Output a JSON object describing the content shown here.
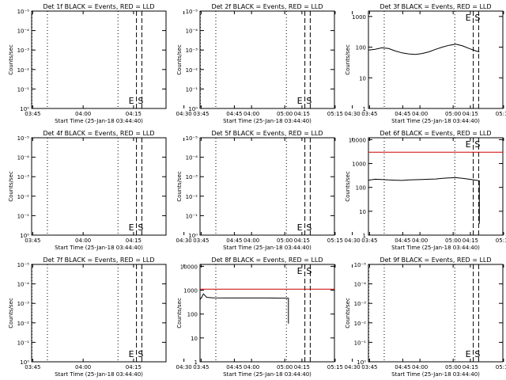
{
  "figure": {
    "x_ticks": [
      "03:45",
      "04:00",
      "04:15",
      "04:30",
      "04:45",
      "05:00",
      "05:15"
    ],
    "x_range_min": [
      0,
      40
    ],
    "xlabel": "Start Time (25-Jan-18 03:44:40)",
    "ylabel": "Counts/sec",
    "linear_yticks": [
      "10⁰",
      "10⁻¹",
      "10⁻²",
      "10⁻³",
      "10⁻⁴",
      "10⁻⁵"
    ],
    "log_yticks_3": [
      "1",
      "10",
      "100",
      "1000"
    ],
    "log_yticks_4": [
      "1",
      "10",
      "100",
      "1000",
      "10000"
    ],
    "colors": {
      "events": "#000000",
      "lld": "#cc0000"
    }
  },
  "chart_data": [
    {
      "type": "line",
      "title": "Det 1f BLACK = Events, RED = LLD",
      "scale": "linear-empty",
      "markers": {
        "E": 6.5,
        "S": 13.3
      },
      "dotted_x": [
        0.1,
        4.7,
        25.7
      ],
      "dashed_x": [
        31.2,
        32.8
      ],
      "series": []
    },
    {
      "type": "line",
      "title": "Det 2f BLACK = Events, RED = LLD",
      "scale": "linear-empty",
      "markers": {
        "E": 6.5,
        "S": 13.3
      },
      "dotted_x": [
        0.1,
        4.7,
        25.7
      ],
      "dashed_x": [
        31.2,
        32.8
      ],
      "series": []
    },
    {
      "type": "line",
      "title": "Det 3f BLACK = Events, RED = LLD",
      "scale": "log",
      "ylim": [
        1,
        1500
      ],
      "markers": {
        "E": 6.5,
        "S": 13.3
      },
      "dotted_x": [
        4.7,
        25.7
      ],
      "dashed_x": [
        31.2,
        32.8
      ],
      "series": [
        {
          "color": "events",
          "x": [
            0,
            2,
            4,
            6,
            8,
            10,
            12,
            14,
            16,
            18,
            20,
            22,
            24,
            26,
            28,
            30,
            32,
            33
          ],
          "y": [
            80,
            85,
            95,
            90,
            75,
            65,
            60,
            58,
            62,
            70,
            85,
            100,
            115,
            125,
            110,
            90,
            75,
            70
          ]
        }
      ]
    },
    {
      "type": "line",
      "title": "Det 4f BLACK = Events, RED = LLD",
      "scale": "linear-empty",
      "markers": {
        "E": 6.5,
        "S": 13.3
      },
      "dotted_x": [
        4.7,
        25.7
      ],
      "dashed_x": [
        31.2,
        32.8
      ],
      "series": []
    },
    {
      "type": "line",
      "title": "Det 5f BLACK = Events, RED = LLD",
      "scale": "linear-empty",
      "markers": {
        "E": 6.5,
        "S": 13.3
      },
      "dotted_x": [
        4.7,
        25.7
      ],
      "dashed_x": [
        31.2,
        32.8
      ],
      "series": []
    },
    {
      "type": "line",
      "title": "Det 6f BLACK = Events, RED = LLD",
      "scale": "log",
      "ylim": [
        1,
        12000
      ],
      "markers": {
        "E": 6.5,
        "S": 13.3
      },
      "dotted_x": [
        4.7,
        25.7
      ],
      "dashed_x": [
        31.2,
        32.8
      ],
      "series": [
        {
          "color": "lld",
          "x": [
            0,
            40
          ],
          "y": [
            3000,
            3000
          ]
        },
        {
          "color": "events",
          "x": [
            0,
            2,
            4,
            6,
            8,
            10,
            12,
            14,
            16,
            18,
            20,
            22,
            24,
            26,
            28,
            30,
            32,
            33,
            33
          ],
          "y": [
            200,
            220,
            215,
            205,
            200,
            195,
            205,
            210,
            215,
            220,
            225,
            240,
            250,
            255,
            240,
            220,
            200,
            190,
            3
          ]
        }
      ]
    },
    {
      "type": "line",
      "title": "Det 7f BLACK = Events, RED = LLD",
      "scale": "linear-empty",
      "markers": {
        "E": 6.5,
        "S": 13.3
      },
      "dotted_x": [
        0.1,
        4.7,
        25.7
      ],
      "dashed_x": [
        31.2,
        32.8
      ],
      "series": []
    },
    {
      "type": "line",
      "title": "Det 8f BLACK = Events, RED = LLD",
      "scale": "log",
      "ylim": [
        1,
        12000
      ],
      "markers": {
        "E": 6.5,
        "S": 13.3
      },
      "dotted_x": [
        4.7,
        25.7
      ],
      "dashed_x": [
        31.2,
        32.8
      ],
      "series": [
        {
          "color": "lld",
          "x": [
            0,
            40
          ],
          "y": [
            1100,
            1100
          ]
        },
        {
          "color": "events",
          "x": [
            0,
            0.5,
            1,
            2,
            4,
            8,
            12,
            16,
            20,
            24,
            26,
            26.3,
            26.3
          ],
          "y": [
            400,
            500,
            700,
            500,
            480,
            470,
            470,
            470,
            470,
            465,
            465,
            460,
            40
          ]
        }
      ]
    },
    {
      "type": "line",
      "title": "Det 9f BLACK = Events, RED = LLD",
      "scale": "linear-empty",
      "markers": {
        "E": 6.5,
        "S": 13.3
      },
      "dotted_x": [
        0.1,
        4.7,
        25.7
      ],
      "dashed_x": [
        31.2,
        32.8
      ],
      "series": []
    }
  ]
}
